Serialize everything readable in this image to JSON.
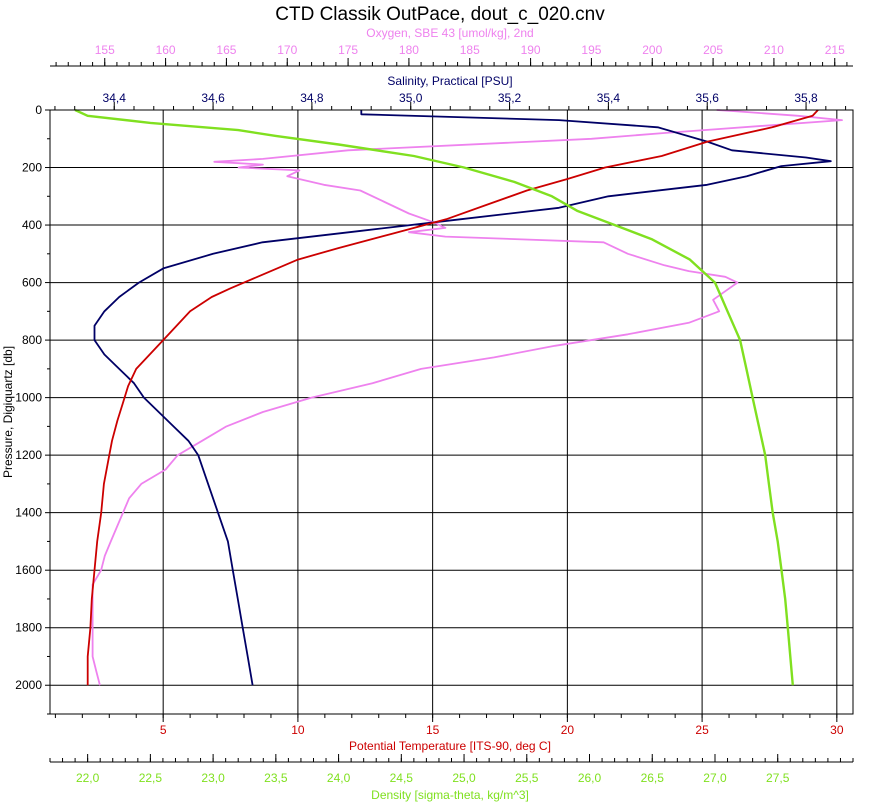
{
  "chart_data": {
    "type": "line",
    "title": "CTD Classik OutPace, dout_c_020.cnv",
    "grid": true,
    "colors": {
      "oxygen": "#ee82ee",
      "salinity": "#000066",
      "temperature": "#cc0000",
      "density": "#80e020",
      "axis": "#000000",
      "grid": "#000000"
    },
    "axes": {
      "pressure": {
        "label": "Pressure, Digiquartz [db]",
        "range": [
          2100,
          0
        ],
        "ticks": [
          "0",
          "200",
          "400",
          "600",
          "800",
          "1000",
          "1200",
          "1400",
          "1600",
          "1800",
          "2000"
        ],
        "tick_values": [
          0,
          200,
          400,
          600,
          800,
          1000,
          1200,
          1400,
          1600,
          1800,
          2000
        ]
      },
      "oxygen": {
        "label": "Oxygen, SBE 43 [umol/kg], 2nd",
        "range": [
          150.5,
          216.5
        ],
        "ticks": [
          "155",
          "160",
          "165",
          "170",
          "175",
          "180",
          "185",
          "190",
          "195",
          "200",
          "205",
          "210",
          "215"
        ],
        "tick_values": [
          155,
          160,
          165,
          170,
          175,
          180,
          185,
          190,
          195,
          200,
          205,
          210,
          215
        ],
        "color": "#ee82ee"
      },
      "salinity": {
        "label": "Salinity, Practical [PSU]",
        "range": [
          34.27,
          35.895
        ],
        "ticks": [
          "34,4",
          "34,6",
          "34,8",
          "35,0",
          "35,2",
          "35,4",
          "35,6",
          "35,8"
        ],
        "tick_values": [
          34.4,
          34.6,
          34.8,
          35.0,
          35.2,
          35.4,
          35.6,
          35.8
        ],
        "color": "#000066"
      },
      "temperature": {
        "label": "Potential Temperature [ITS-90, deg C]",
        "range": [
          0.8,
          30.6
        ],
        "ticks": [
          "5",
          "10",
          "15",
          "20",
          "25",
          "30"
        ],
        "tick_values": [
          5,
          10,
          15,
          20,
          25,
          30
        ],
        "color": "#cc0000"
      },
      "density": {
        "label": "Density [sigma-theta, kg/m^3]",
        "range": [
          21.7,
          28.1
        ],
        "ticks": [
          "22,0",
          "22,5",
          "23,0",
          "23,5",
          "24,0",
          "24,5",
          "25,0",
          "25,5",
          "26,0",
          "26,5",
          "27,0",
          "27,5"
        ],
        "tick_values": [
          22.0,
          22.5,
          23.0,
          23.5,
          24.0,
          24.5,
          25.0,
          25.5,
          26.0,
          26.5,
          27.0,
          27.5
        ],
        "color": "#80e020"
      }
    },
    "series": [
      {
        "name": "Oxygen, SBE 43 [umol/kg], 2nd",
        "axis": "oxygen",
        "points": [
          [
            205.3,
            0
          ],
          [
            207,
            5
          ],
          [
            212,
            20
          ],
          [
            215.6,
            35
          ],
          [
            201,
            80
          ],
          [
            195,
            100
          ],
          [
            175,
            140
          ],
          [
            168,
            170
          ],
          [
            164,
            180
          ],
          [
            168,
            190
          ],
          [
            166,
            200
          ],
          [
            171,
            210
          ],
          [
            170,
            230
          ],
          [
            173,
            260
          ],
          [
            176,
            280
          ],
          [
            178,
            320
          ],
          [
            180,
            360
          ],
          [
            182,
            390
          ],
          [
            183,
            410
          ],
          [
            180,
            425
          ],
          [
            183,
            440
          ],
          [
            196,
            460
          ],
          [
            198,
            500
          ],
          [
            201,
            540
          ],
          [
            203,
            560
          ],
          [
            206,
            580
          ],
          [
            207,
            600
          ],
          [
            206,
            630
          ],
          [
            205,
            660
          ],
          [
            205.5,
            700
          ],
          [
            203,
            740
          ],
          [
            198,
            780
          ],
          [
            192,
            820
          ],
          [
            187,
            860
          ],
          [
            181,
            900
          ],
          [
            177,
            950
          ],
          [
            172,
            1000
          ],
          [
            168,
            1050
          ],
          [
            165,
            1100
          ],
          [
            163,
            1150
          ],
          [
            161,
            1200
          ],
          [
            160,
            1250
          ],
          [
            158,
            1300
          ],
          [
            157,
            1350
          ],
          [
            156.5,
            1400
          ],
          [
            156,
            1450
          ],
          [
            155.5,
            1500
          ],
          [
            155,
            1550
          ],
          [
            154.7,
            1600
          ],
          [
            154,
            1650
          ],
          [
            154,
            1700
          ],
          [
            154,
            1750
          ],
          [
            154,
            1800
          ],
          [
            154,
            1850
          ],
          [
            154,
            1900
          ],
          [
            154.3,
            1950
          ],
          [
            154.6,
            2000
          ]
        ]
      },
      {
        "name": "Salinity, Practical [PSU]",
        "axis": "salinity",
        "points": [
          [
            34.9,
            0
          ],
          [
            34.9,
            15
          ],
          [
            35.3,
            35
          ],
          [
            35.5,
            60
          ],
          [
            35.6,
            110
          ],
          [
            35.65,
            140
          ],
          [
            35.8,
            165
          ],
          [
            35.85,
            178
          ],
          [
            35.75,
            195
          ],
          [
            35.68,
            230
          ],
          [
            35.6,
            260
          ],
          [
            35.4,
            300
          ],
          [
            35.3,
            340
          ],
          [
            35.1,
            380
          ],
          [
            34.9,
            420
          ],
          [
            34.7,
            460
          ],
          [
            34.6,
            500
          ],
          [
            34.5,
            550
          ],
          [
            34.45,
            600
          ],
          [
            34.41,
            650
          ],
          [
            34.38,
            700
          ],
          [
            34.36,
            750
          ],
          [
            34.36,
            800
          ],
          [
            34.38,
            850
          ],
          [
            34.41,
            900
          ],
          [
            34.44,
            950
          ],
          [
            34.46,
            1000
          ],
          [
            34.49,
            1050
          ],
          [
            34.52,
            1100
          ],
          [
            34.55,
            1150
          ],
          [
            34.57,
            1200
          ],
          [
            34.59,
            1300
          ],
          [
            34.61,
            1400
          ],
          [
            34.63,
            1500
          ],
          [
            34.64,
            1600
          ],
          [
            34.65,
            1700
          ],
          [
            34.66,
            1800
          ],
          [
            34.67,
            1900
          ],
          [
            34.68,
            2000
          ]
        ]
      },
      {
        "name": "Potential Temperature [ITS-90, deg C]",
        "axis": "temperature",
        "points": [
          [
            29.3,
            0
          ],
          [
            29.1,
            20
          ],
          [
            27.6,
            60
          ],
          [
            25.2,
            110
          ],
          [
            23.5,
            160
          ],
          [
            21.4,
            200
          ],
          [
            20,
            240
          ],
          [
            18.5,
            280
          ],
          [
            17,
            330
          ],
          [
            15.5,
            380
          ],
          [
            13.5,
            430
          ],
          [
            11.5,
            480
          ],
          [
            10,
            520
          ],
          [
            8.5,
            580
          ],
          [
            7.5,
            620
          ],
          [
            6.8,
            650
          ],
          [
            6,
            700
          ],
          [
            5.5,
            750
          ],
          [
            5,
            800
          ],
          [
            4.4,
            860
          ],
          [
            4,
            900
          ],
          [
            3.7,
            960
          ],
          [
            3.5,
            1020
          ],
          [
            3.3,
            1080
          ],
          [
            3.1,
            1150
          ],
          [
            3,
            1200
          ],
          [
            2.8,
            1300
          ],
          [
            2.7,
            1400
          ],
          [
            2.55,
            1500
          ],
          [
            2.45,
            1600
          ],
          [
            2.35,
            1700
          ],
          [
            2.3,
            1800
          ],
          [
            2.2,
            1900
          ],
          [
            2.2,
            2000
          ]
        ]
      },
      {
        "name": "Density [sigma-theta, kg/m^3]",
        "axis": "density",
        "points": [
          [
            21.9,
            0
          ],
          [
            22.0,
            20
          ],
          [
            22.5,
            45
          ],
          [
            23.2,
            70
          ],
          [
            23.5,
            90
          ],
          [
            24.0,
            120
          ],
          [
            24.6,
            160
          ],
          [
            25.0,
            200
          ],
          [
            25.4,
            250
          ],
          [
            25.7,
            300
          ],
          [
            25.9,
            350
          ],
          [
            26.2,
            400
          ],
          [
            26.5,
            450
          ],
          [
            26.8,
            520
          ],
          [
            26.9,
            560
          ],
          [
            27.0,
            600
          ],
          [
            27.05,
            650
          ],
          [
            27.1,
            700
          ],
          [
            27.15,
            750
          ],
          [
            27.2,
            800
          ],
          [
            27.25,
            900
          ],
          [
            27.3,
            1000
          ],
          [
            27.35,
            1100
          ],
          [
            27.4,
            1200
          ],
          [
            27.43,
            1300
          ],
          [
            27.46,
            1400
          ],
          [
            27.5,
            1500
          ],
          [
            27.53,
            1600
          ],
          [
            27.56,
            1700
          ],
          [
            27.58,
            1800
          ],
          [
            27.6,
            1900
          ],
          [
            27.62,
            2000
          ]
        ]
      }
    ]
  }
}
